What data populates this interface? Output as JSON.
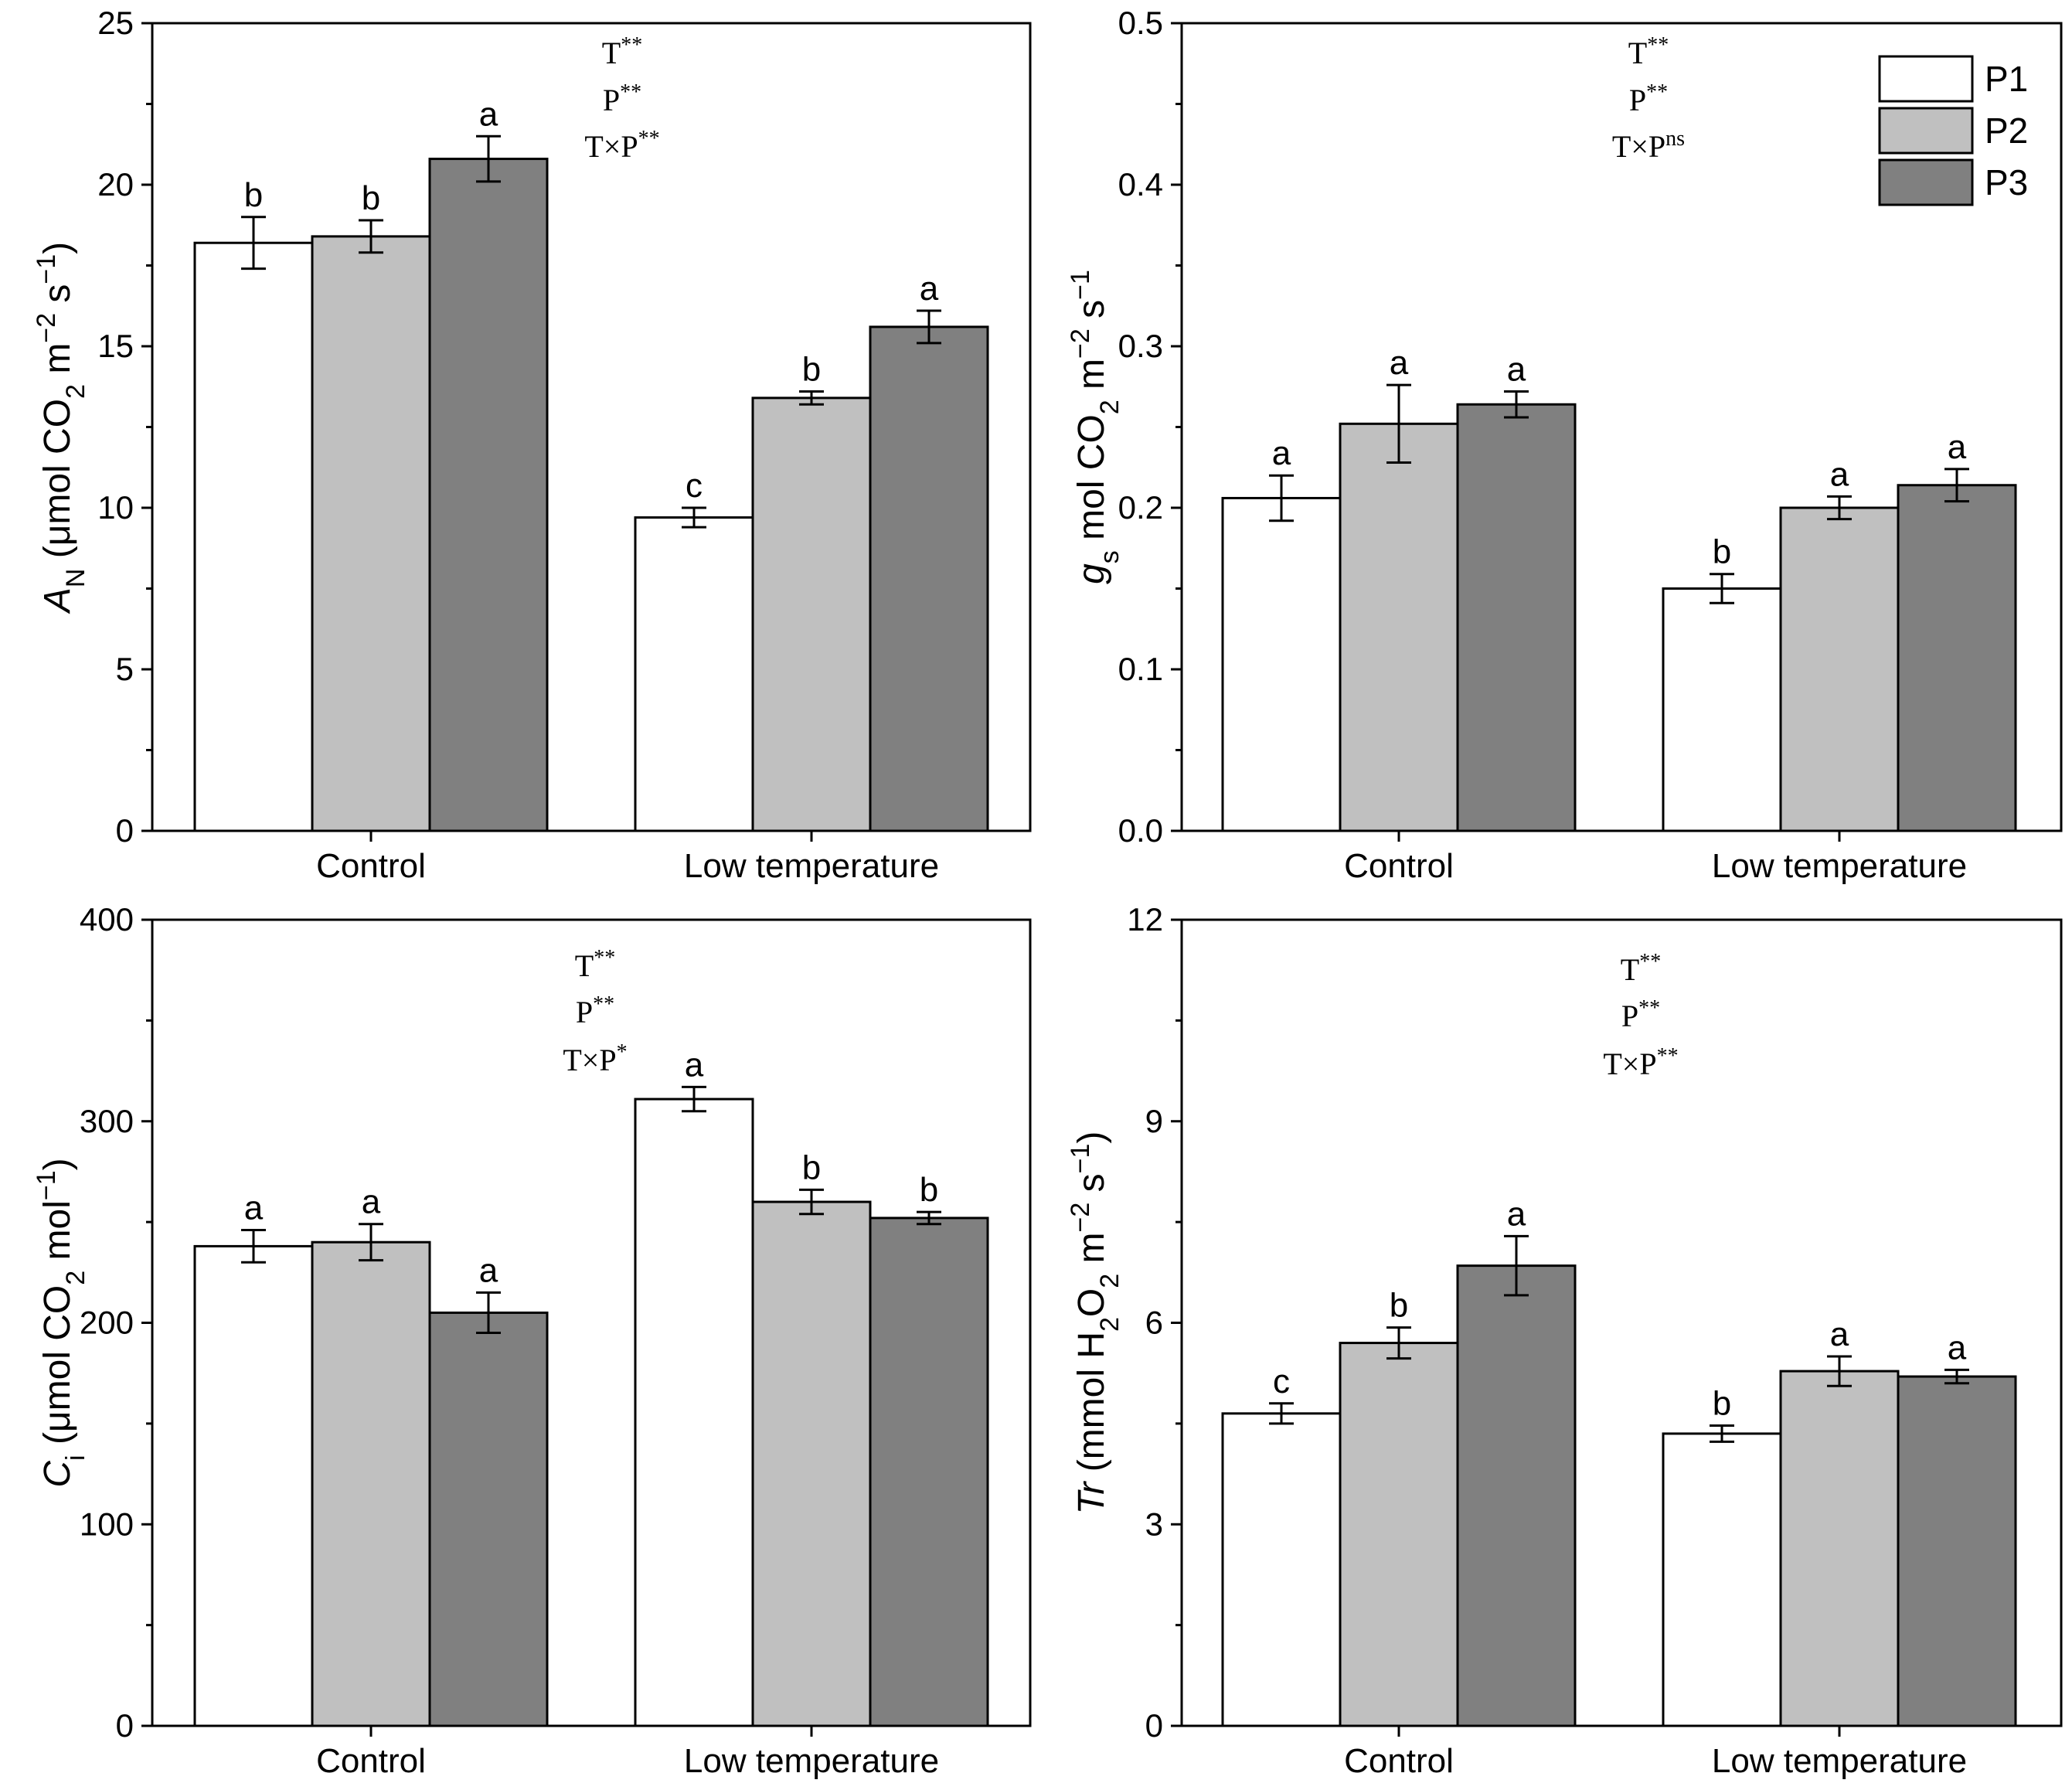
{
  "chart_data": [
    {
      "type": "bar",
      "categories": [
        "Control",
        "Low temperature"
      ],
      "series": [
        {
          "name": "P1",
          "values": [
            18.2,
            9.7
          ],
          "errors": [
            0.8,
            0.3
          ],
          "letters": [
            "b",
            "c"
          ],
          "color": "#ffffff"
        },
        {
          "name": "P2",
          "values": [
            18.4,
            13.4
          ],
          "errors": [
            0.5,
            0.2
          ],
          "letters": [
            "b",
            "b"
          ],
          "color": "#c0c0c0"
        },
        {
          "name": "P3",
          "values": [
            20.8,
            15.6
          ],
          "errors": [
            0.7,
            0.5
          ],
          "letters": [
            "a",
            "a"
          ],
          "color": "#808080"
        }
      ],
      "ylabel": {
        "main": "A",
        "sub": "N",
        "rest": " (μmol CO",
        "sub2": "2",
        "rest2": " m",
        "sup": "−2",
        "rest3": " s",
        "sup2": "−1",
        "rest4": ")"
      },
      "ylim": [
        0,
        25
      ],
      "yticks": [
        "0",
        "5",
        "10",
        "15",
        "20",
        "25"
      ],
      "stats": [
        {
          "base": "T",
          "sup": "**"
        },
        {
          "base": "P",
          "sup": "**"
        },
        {
          "base": "T×P",
          "sup": "**"
        }
      ]
    },
    {
      "type": "bar",
      "categories": [
        "Control",
        "Low temperature"
      ],
      "series": [
        {
          "name": "P1",
          "values": [
            0.206,
            0.15
          ],
          "errors": [
            0.014,
            0.009
          ],
          "letters": [
            "a",
            "b"
          ],
          "color": "#ffffff"
        },
        {
          "name": "P2",
          "values": [
            0.252,
            0.2
          ],
          "errors": [
            0.024,
            0.007
          ],
          "letters": [
            "a",
            "a"
          ],
          "color": "#c0c0c0"
        },
        {
          "name": "P3",
          "values": [
            0.264,
            0.214
          ],
          "errors": [
            0.008,
            0.01
          ],
          "letters": [
            "a",
            "a"
          ],
          "color": "#808080"
        }
      ],
      "ylabel": {
        "main": "g",
        "sub": "s",
        "rest": " mol CO",
        "sub2": "2",
        "rest2": " m",
        "sup": "−2",
        "rest3": " s",
        "sup2": "−1",
        "rest4": ""
      },
      "ylim": [
        0,
        0.5
      ],
      "yticks": [
        "0.0",
        "0.1",
        "0.2",
        "0.3",
        "0.4",
        "0.5"
      ],
      "stats": [
        {
          "base": "T",
          "sup": "**"
        },
        {
          "base": "P",
          "sup": "**"
        },
        {
          "base": "T×P",
          "sup": "ns"
        }
      ],
      "legend": [
        "P1",
        "P2",
        "P3"
      ]
    },
    {
      "type": "bar",
      "categories": [
        "Control",
        "Low temperature"
      ],
      "series": [
        {
          "name": "P1",
          "values": [
            238,
            311
          ],
          "errors": [
            8,
            6
          ],
          "letters": [
            "a",
            "a"
          ],
          "color": "#ffffff"
        },
        {
          "name": "P2",
          "values": [
            240,
            260
          ],
          "errors": [
            9,
            6
          ],
          "letters": [
            "a",
            "b"
          ],
          "color": "#c0c0c0"
        },
        {
          "name": "P3",
          "values": [
            205,
            252
          ],
          "errors": [
            10,
            3
          ],
          "letters": [
            "a",
            "b"
          ],
          "color": "#808080"
        }
      ],
      "ylabel": {
        "main": "C",
        "sub": "i",
        "rest": " (μmol CO",
        "sub2": "2",
        "rest2": " mol",
        "sup": "−1",
        "rest3": ")",
        "sup2": "",
        "rest4": ""
      },
      "ylim": [
        0,
        400
      ],
      "yticks": [
        "0",
        "100",
        "200",
        "300",
        "400"
      ],
      "stats": [
        {
          "base": "T",
          "sup": "**"
        },
        {
          "base": "P",
          "sup": "**"
        },
        {
          "base": "T×P",
          "sup": "*"
        }
      ]
    },
    {
      "type": "bar",
      "categories": [
        "Control",
        "Low temperature"
      ],
      "series": [
        {
          "name": "P1",
          "values": [
            4.65,
            4.35
          ],
          "errors": [
            0.15,
            0.12
          ],
          "letters": [
            "c",
            "b"
          ],
          "color": "#ffffff"
        },
        {
          "name": "P2",
          "values": [
            5.7,
            5.28
          ],
          "errors": [
            0.23,
            0.22
          ],
          "letters": [
            "b",
            "a"
          ],
          "color": "#c0c0c0"
        },
        {
          "name": "P3",
          "values": [
            6.85,
            5.2
          ],
          "errors": [
            0.44,
            0.1
          ],
          "letters": [
            "a",
            "a"
          ],
          "color": "#808080"
        }
      ],
      "ylabel": {
        "main": "Tr",
        "sub": "",
        "rest": " (mmol H",
        "sub2": "2",
        "rest2": "O",
        "sub3": "2",
        "rest2b": " m",
        "sup": "−2",
        "rest3": " s",
        "sup2": "−1",
        "rest4": ")"
      },
      "ylim": [
        0,
        12
      ],
      "yticks": [
        "0",
        "3",
        "6",
        "9",
        "12"
      ],
      "stats": [
        {
          "base": "T",
          "sup": "**"
        },
        {
          "base": "P",
          "sup": "**"
        },
        {
          "base": "T×P",
          "sup": "**"
        }
      ]
    }
  ]
}
